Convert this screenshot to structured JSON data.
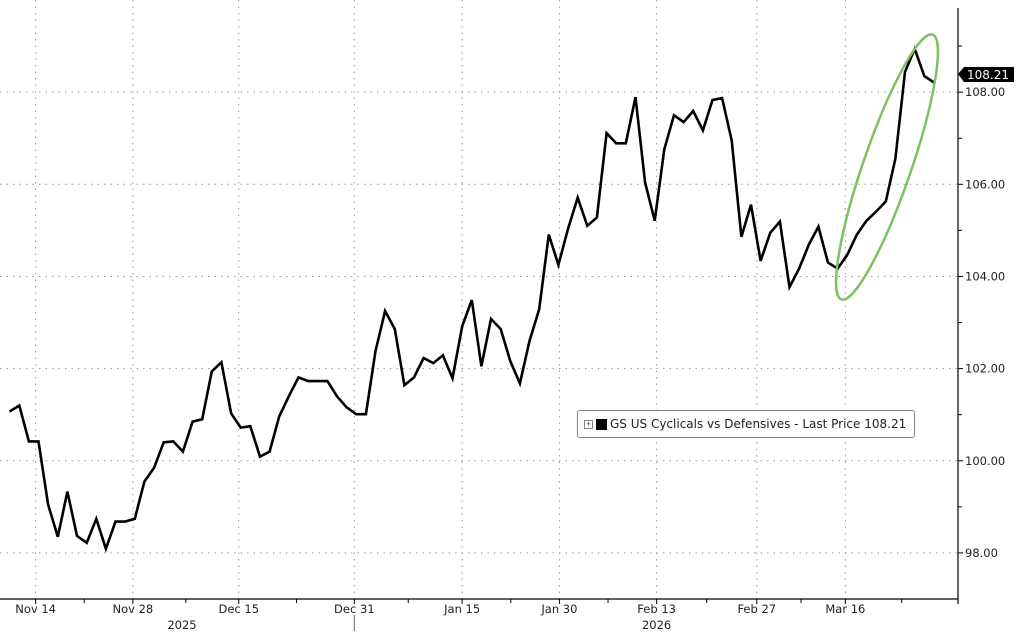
{
  "chart_data": {
    "type": "line",
    "title": "",
    "xlabel": "",
    "ylabel": "",
    "series": [
      {
        "name": "GS US Cyclicals vs Defensives",
        "color": "#000000",
        "values": [
          101.07,
          101.2,
          100.42,
          100.42,
          99.05,
          98.35,
          99.33,
          98.37,
          98.22,
          98.74,
          98.09,
          98.68,
          98.68,
          98.74,
          99.55,
          99.85,
          100.4,
          100.42,
          100.2,
          100.85,
          100.9,
          101.94,
          102.14,
          101.03,
          100.72,
          100.75,
          100.09,
          100.2,
          100.96,
          101.4,
          101.81,
          101.73,
          101.73,
          101.73,
          101.4,
          101.16,
          101.01,
          101.01,
          102.38,
          103.25,
          102.86,
          101.64,
          101.81,
          102.23,
          102.12,
          102.29,
          101.79,
          102.92,
          103.49,
          102.05,
          103.08,
          102.86,
          102.16,
          101.68,
          102.6,
          103.29,
          104.91,
          104.25,
          105.04,
          105.71,
          105.1,
          105.28,
          107.11,
          106.89,
          106.89,
          107.89,
          106.04,
          105.21,
          106.76,
          107.5,
          107.35,
          107.59,
          107.17,
          107.83,
          107.87,
          106.95,
          104.86,
          105.56,
          104.34,
          104.95,
          105.19,
          103.77,
          104.17,
          104.69,
          105.08,
          104.3,
          104.17,
          104.47,
          104.91,
          105.21,
          105.41,
          105.63,
          106.56,
          108.44,
          108.94,
          108.35,
          108.21
        ]
      }
    ],
    "x_ticks": [
      {
        "label": "Nov 14",
        "index": 2.7
      },
      {
        "label": "Nov 28",
        "index": 12.8
      },
      {
        "label": "Dec 15",
        "index": 23.8
      },
      {
        "label": "Dec 31",
        "index": 35.8
      },
      {
        "label": "Jan 15",
        "index": 47.0
      },
      {
        "label": "Jan 30",
        "index": 57.1
      },
      {
        "label": "Feb 13",
        "index": 67.2
      },
      {
        "label": "Feb 27",
        "index": 77.6
      },
      {
        "label": "Mar 16",
        "index": 86.8
      }
    ],
    "year_labels": [
      {
        "label": "2025",
        "index": 17.9
      },
      {
        "label": "2026",
        "index": 67.2
      }
    ],
    "xlim": [
      -1.0,
      98.5
    ],
    "y_ticks": [
      "98.00",
      "100.00",
      "102.00",
      "104.00",
      "106.00",
      "108.00"
    ],
    "ylim": [
      97.0,
      110.0
    ],
    "grid": true,
    "y_axis_side": "right",
    "last_price_label": "108.21",
    "legend": {
      "placement": "center-right",
      "text": "GS US Cyclicals vs Defensives - Last Price 108.21"
    },
    "annotation": {
      "shape": "ellipse",
      "color": "#7cc260",
      "highlights": "last ~12 points (March rally)"
    }
  }
}
